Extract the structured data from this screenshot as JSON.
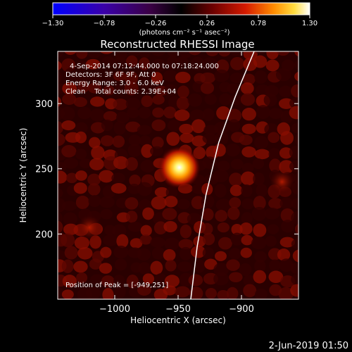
{
  "chart_data": {
    "type": "heatmap",
    "title": "Reconstructed RHESSI Image",
    "xlabel": "Heliocentric X (arcsec)",
    "ylabel": "Heliocentric Y (arcsec)",
    "xlim": [
      -1045,
      -855
    ],
    "ylim": [
      150,
      340
    ],
    "x_ticks": [
      -1000,
      -950,
      -900
    ],
    "x_tick_labels": [
      "−1000",
      "−950",
      "−900"
    ],
    "y_ticks": [
      200,
      250,
      300
    ],
    "y_tick_labels": [
      "200",
      "250",
      "300"
    ],
    "colorbar": {
      "min": -1.3,
      "max": 1.3,
      "ticks": [
        -1.3,
        -0.78,
        -0.26,
        0.26,
        0.78,
        1.3
      ],
      "tick_labels": [
        "−1.30",
        "−0.78",
        "−0.26",
        "0.26",
        "0.78",
        "1.30"
      ],
      "units": "(photons cm⁻² s⁻¹ asec⁻²)",
      "colormap": "rainbow-like blue→purple→red→yellow→white"
    },
    "annotations": [
      "4-Sep-2014 07:12:44.000 to 07:18:24.000",
      "Detectors: 3F 6F 9F, Att 0",
      "Energy Range: 3.0 - 6.0 keV",
      "Clean    Total counts: 2.39E+04"
    ],
    "peak_label": "Position of Peak = [-949,251]",
    "peak": {
      "x": -949,
      "y": 251,
      "value": 1.3
    },
    "secondary_sources": [
      {
        "x": -868,
        "y": 240,
        "value": 0.5
      },
      {
        "x": -1020,
        "y": 205,
        "value": 0.35
      }
    ],
    "limb_curve": [
      [
        -940,
        150
      ],
      [
        -935,
        190
      ],
      [
        -928,
        230
      ],
      [
        -918,
        270
      ],
      [
        -905,
        305
      ],
      [
        -890,
        340
      ]
    ]
  },
  "footer": {
    "date": "2-Jun-2019 01:50"
  }
}
